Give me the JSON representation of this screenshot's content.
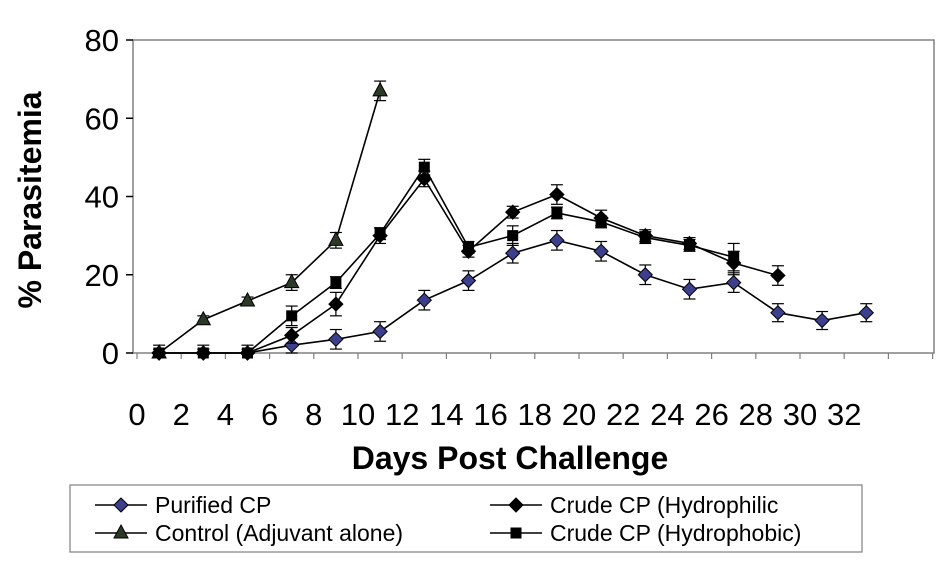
{
  "chart_data": {
    "type": "line",
    "title": "",
    "xlabel": "Days Post Challenge",
    "ylabel": "% Parasitemia",
    "x_ticks": [
      "0",
      "2",
      "4",
      "6",
      "8",
      "10",
      "12",
      "14",
      "16",
      "18",
      "20",
      "22",
      "24",
      "26",
      "28",
      "30",
      "32"
    ],
    "y_ticks": [
      0,
      20,
      40,
      60,
      80
    ],
    "ylim": [
      0,
      80
    ],
    "grid": false,
    "legend_placement": "bottom",
    "series": [
      {
        "name": "Purified CP",
        "marker": "diamond",
        "marker_color": "#3b3f8c",
        "x": [
          1,
          3,
          5,
          7,
          9,
          11,
          13,
          15,
          17,
          19,
          21,
          23,
          25,
          27,
          29,
          31,
          33
        ],
        "y": [
          0,
          0,
          0,
          2,
          3.5,
          5.5,
          13.5,
          18.5,
          25.5,
          28.8,
          26,
          20,
          16.3,
          18,
          10.3,
          8.3,
          10.3
        ],
        "err": [
          2,
          2,
          2,
          2,
          2.5,
          2.5,
          2.5,
          2.5,
          2.5,
          2.5,
          2.5,
          2.5,
          2.5,
          2.5,
          2.3,
          2.3,
          2.3
        ]
      },
      {
        "name": "Crude CP (Hydrophilic",
        "marker": "diamond",
        "marker_color": "#000000",
        "x": [
          1,
          3,
          5,
          7,
          9,
          11,
          13,
          15,
          17,
          19,
          21,
          23,
          25,
          27,
          29
        ],
        "y": [
          0,
          0,
          0,
          4.5,
          12.5,
          30,
          44.5,
          26,
          36,
          40.5,
          34.5,
          30,
          28,
          23,
          19.8
        ],
        "err": [
          1,
          1,
          1,
          2,
          3,
          2,
          2,
          1.5,
          1.5,
          2.5,
          2,
          1.5,
          1.5,
          3,
          2.5
        ]
      },
      {
        "name": "Control (Adjuvant alone)",
        "marker": "triangle",
        "marker_color": "#2b3a26",
        "x": [
          1,
          3,
          5,
          7,
          9,
          11
        ],
        "y": [
          0,
          8.5,
          13.3,
          18,
          28.8,
          67
        ],
        "err": [
          1,
          1,
          1,
          2,
          2,
          2.5
        ]
      },
      {
        "name": "Crude CP (Hydrophobic)",
        "marker": "square",
        "marker_color": "#000000",
        "x": [
          1,
          3,
          5,
          7,
          9,
          11,
          13,
          15,
          17,
          19,
          21,
          23,
          25,
          27
        ],
        "y": [
          0,
          0,
          0,
          9.5,
          18,
          30.5,
          47.5,
          27,
          30,
          35.8,
          33.5,
          29.5,
          27.5,
          24.5
        ],
        "err": [
          1,
          1,
          1,
          2.5,
          1.5,
          1.5,
          2,
          1.5,
          2.5,
          1.5,
          1.5,
          1.5,
          1.5,
          3.5
        ]
      }
    ]
  }
}
